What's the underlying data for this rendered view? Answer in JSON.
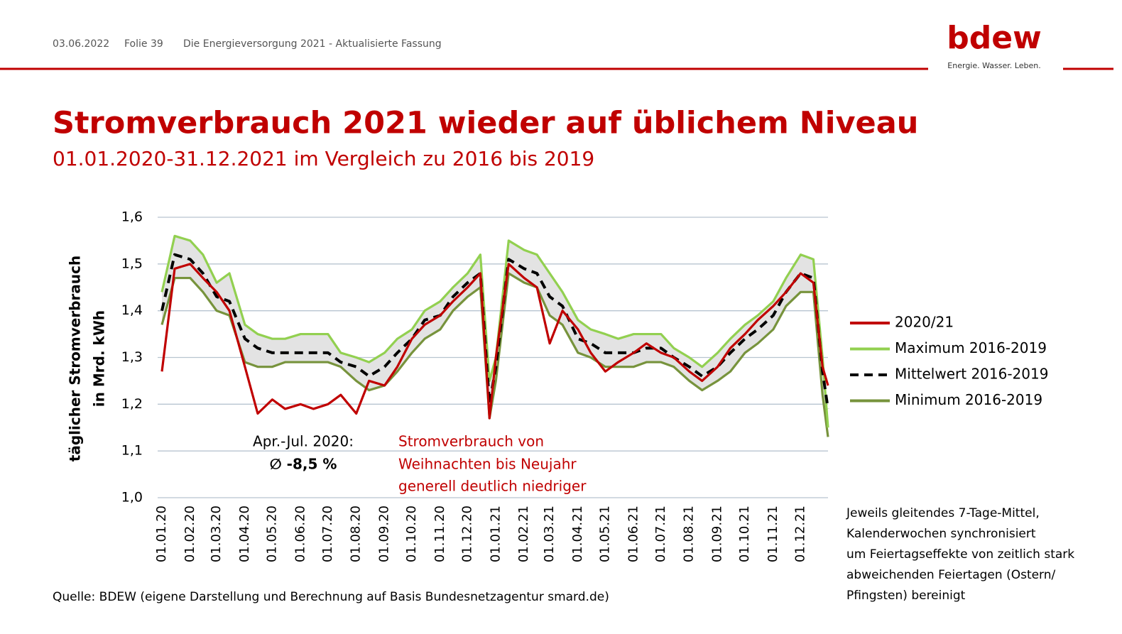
{
  "header": {
    "date": "03.06.2022",
    "slide": "Folie 39",
    "doc": "Die Energieversorgung 2021 - Aktualisierte Fassung",
    "logo": "bdew",
    "tagline": "Energie. Wasser. Leben."
  },
  "chart_data": {
    "type": "line",
    "title": "Stromverbrauch 2021 wieder auf üblichem Niveau",
    "subtitle": "01.01.2020-31.12.2021 im Vergleich zu 2016 bis 2019",
    "y_label": [
      "täglicher Stromverbrauch",
      "in Mrd. kWh"
    ],
    "annotations": [
      "Apr.-Jul. 2020:",
      "∅ -8,5 %",
      "Stromverbrauch von",
      "Weihnachten bis Neujahr",
      "generell deutlich niedriger"
    ],
    "note": [
      "Jeweils gleitendes 7-Tage-Mittel,",
      "Kalenderwochen synchronisiert",
      "um Feiertagseffekte von zeitlich stark",
      "abweichenden Feiertagen (Ostern/",
      "Pfingsten) bereinigt"
    ],
    "source": "Quelle: BDEW (eigene Darstellung und Berechnung auf Basis Bundesnetzagentur smard.de)",
    "x": [
      "01.01.20",
      "15.01.20",
      "01.02.20",
      "15.02.20",
      "01.03.20",
      "15.03.20",
      "01.04.20",
      "15.04.20",
      "01.05.20",
      "15.05.20",
      "01.06.20",
      "15.06.20",
      "01.07.20",
      "15.07.20",
      "01.08.20",
      "15.08.20",
      "01.09.20",
      "15.09.20",
      "01.10.20",
      "15.10.20",
      "01.11.20",
      "15.11.20",
      "01.12.20",
      "15.12.20",
      "25.12.20",
      "01.01.21",
      "15.01.21",
      "01.02.21",
      "15.02.21",
      "01.03.21",
      "15.03.21",
      "01.04.21",
      "15.04.21",
      "01.05.21",
      "15.05.21",
      "01.06.21",
      "15.06.21",
      "01.07.21",
      "15.07.21",
      "01.08.21",
      "15.08.21",
      "01.09.21",
      "15.09.21",
      "01.10.21",
      "15.10.21",
      "01.11.21",
      "15.11.21",
      "01.12.21",
      "15.12.21",
      "25.12.21",
      "31.12.21"
    ],
    "xlim": [
      "01.01.20",
      "31.12.21"
    ],
    "xticks": [
      "01.01.20",
      "01.02.20",
      "01.03.20",
      "01.04.20",
      "01.05.20",
      "01.06.20",
      "01.07.20",
      "01.08.20",
      "01.09.20",
      "01.10.20",
      "01.11.20",
      "01.12.20",
      "01.01.21",
      "01.02.21",
      "01.03.21",
      "01.04.21",
      "01.05.21",
      "01.06.21",
      "01.07.21",
      "01.08.21",
      "01.09.21",
      "01.10.21",
      "01.11.21",
      "01.12.21"
    ],
    "ylim": [
      1.0,
      1.6
    ],
    "yticks": [
      {
        "value": 1.0,
        "label": "1,0"
      },
      {
        "value": 1.1,
        "label": "1,1"
      },
      {
        "value": 1.2,
        "label": "1,2"
      },
      {
        "value": 1.3,
        "label": "1,3"
      },
      {
        "value": 1.4,
        "label": "1,4"
      },
      {
        "value": 1.5,
        "label": "1,5"
      },
      {
        "value": 1.6,
        "label": "1,6"
      }
    ],
    "grid": true,
    "band_color": "#e3e3e3",
    "series": [
      {
        "name": "2020/21",
        "color": "#c00000",
        "dashed": false,
        "values": [
          1.27,
          1.49,
          1.5,
          1.47,
          1.44,
          1.4,
          1.28,
          1.18,
          1.21,
          1.19,
          1.2,
          1.19,
          1.2,
          1.22,
          1.18,
          1.25,
          1.24,
          1.28,
          1.34,
          1.37,
          1.39,
          1.42,
          1.45,
          1.48,
          1.17,
          1.3,
          1.5,
          1.47,
          1.45,
          1.33,
          1.4,
          1.36,
          1.31,
          1.27,
          1.29,
          1.31,
          1.33,
          1.31,
          1.3,
          1.27,
          1.25,
          1.28,
          1.32,
          1.35,
          1.38,
          1.41,
          1.44,
          1.48,
          1.46,
          1.28,
          1.24
        ]
      },
      {
        "name": "Maximum 2016-2019",
        "color": "#92d050",
        "dashed": false,
        "values": [
          1.44,
          1.56,
          1.55,
          1.52,
          1.46,
          1.48,
          1.37,
          1.35,
          1.34,
          1.34,
          1.35,
          1.35,
          1.35,
          1.31,
          1.3,
          1.29,
          1.31,
          1.34,
          1.36,
          1.4,
          1.42,
          1.45,
          1.48,
          1.52,
          1.25,
          1.3,
          1.55,
          1.53,
          1.52,
          1.48,
          1.44,
          1.38,
          1.36,
          1.35,
          1.34,
          1.35,
          1.35,
          1.35,
          1.32,
          1.3,
          1.28,
          1.31,
          1.34,
          1.37,
          1.39,
          1.42,
          1.47,
          1.52,
          1.51,
          1.3,
          1.15
        ]
      },
      {
        "name": "Mittelwert 2016-2019",
        "color": "#000000",
        "dashed": true,
        "values": [
          1.4,
          1.52,
          1.51,
          1.48,
          1.43,
          1.42,
          1.34,
          1.32,
          1.31,
          1.31,
          1.31,
          1.31,
          1.31,
          1.29,
          1.28,
          1.26,
          1.28,
          1.31,
          1.34,
          1.38,
          1.39,
          1.43,
          1.46,
          1.48,
          1.2,
          1.28,
          1.51,
          1.49,
          1.48,
          1.43,
          1.41,
          1.34,
          1.33,
          1.31,
          1.31,
          1.31,
          1.32,
          1.32,
          1.3,
          1.28,
          1.26,
          1.28,
          1.31,
          1.34,
          1.36,
          1.39,
          1.44,
          1.48,
          1.47,
          1.27,
          1.19
        ]
      },
      {
        "name": "Minimum 2016-2019",
        "color": "#77933c",
        "dashed": false,
        "values": [
          1.37,
          1.47,
          1.47,
          1.44,
          1.4,
          1.39,
          1.29,
          1.28,
          1.28,
          1.29,
          1.29,
          1.29,
          1.29,
          1.28,
          1.25,
          1.23,
          1.24,
          1.27,
          1.31,
          1.34,
          1.36,
          1.4,
          1.43,
          1.45,
          1.17,
          1.25,
          1.48,
          1.46,
          1.45,
          1.39,
          1.37,
          1.31,
          1.3,
          1.28,
          1.28,
          1.28,
          1.29,
          1.29,
          1.28,
          1.25,
          1.23,
          1.25,
          1.27,
          1.31,
          1.33,
          1.36,
          1.41,
          1.44,
          1.44,
          1.22,
          1.13
        ]
      }
    ]
  }
}
